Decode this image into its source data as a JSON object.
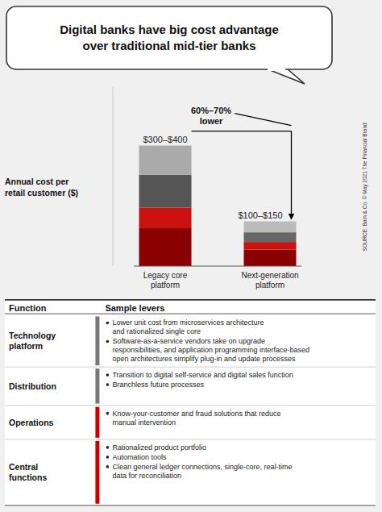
{
  "chart_data": {
    "type": "bar",
    "stacked": true,
    "title": "Digital banks have big cost advantage\nover traditional mid-tier banks",
    "ylabel": "Annual cost per\nretail customer ($)",
    "categories": [
      "Legacy core\nplatform",
      "Next-generation\nplatform"
    ],
    "series": [
      {
        "values": [
          110,
          48
        ],
        "color": "#8B0000"
      },
      {
        "values": [
          60,
          22
        ],
        "color": "#CC1111"
      },
      {
        "values": [
          95,
          28
        ],
        "colors": [
          "#555555",
          "#666666"
        ]
      },
      {
        "values": [
          85,
          32
        ],
        "colors": [
          "#AAAAAA",
          "#BBBBBB"
        ]
      }
    ],
    "ylim": [
      0,
      520
    ],
    "tick_labels": false,
    "grid": false,
    "annotations": [
      "$300–$400",
      "$100–$150",
      "60%–70%\nlower"
    ],
    "source": "SOURCE: Bain & Co. © May 2021 The Financial Brand",
    "table": {
      "columns": [
        "Function",
        "Sample levers"
      ],
      "rows": [
        {
          "function": "Technology\nplatform",
          "levers": [
            "Lower unit cost from microservices architecture\n   and rationalized single core",
            "Software-as-a-service vendors take on upgrade\n   responsibilities, and application programming interface-based\n   open architectures simplify plug-in and update processes"
          ],
          "color": "#777777"
        },
        {
          "function": "Distribution",
          "levers": [
            "Transition to digital self-service and digital sales function",
            "Branchless future processes"
          ],
          "color": "#777777"
        },
        {
          "function": "Operations",
          "levers": [
            "Know-your-customer and fraud solutions that reduce\n   manual intervention"
          ],
          "color": "#CC0000"
        },
        {
          "function": "Central\nfunctions",
          "levers": [
            "Rationalized product portfolio",
            "Automation tools",
            "Clean general ledger connections, single-core, real-time\n   data for reconciliation"
          ],
          "color": "#CC0000"
        }
      ]
    }
  }
}
